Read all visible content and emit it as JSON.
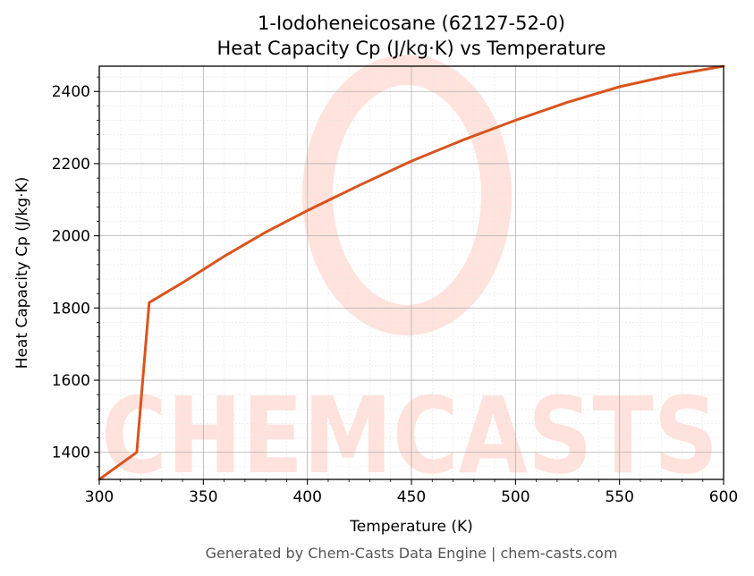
{
  "chart_data": {
    "type": "line",
    "title": "1-Iodoheneicosane (62127-52-0)",
    "subtitle": "Heat Capacity Cp (J/kg·K) vs Temperature",
    "xlabel": "Temperature (K)",
    "ylabel": "Heat Capacity Cp (J/kg·K)",
    "xlim": [
      300,
      600
    ],
    "ylim": [
      1325,
      2470
    ],
    "xticks": [
      300,
      350,
      400,
      450,
      500,
      550,
      600
    ],
    "yticks": [
      1400,
      1600,
      1800,
      2000,
      2200,
      2400
    ],
    "grid": true,
    "series": [
      {
        "color": "#d9541e",
        "x": [
          300,
          318,
          324,
          340,
          360,
          380,
          400,
          425,
          450,
          475,
          500,
          525,
          550,
          575,
          600
        ],
        "y": [
          1325,
          1400,
          1815,
          1870,
          1943,
          2010,
          2070,
          2140,
          2207,
          2266,
          2320,
          2370,
          2413,
          2445,
          2470
        ]
      }
    ]
  },
  "watermark": {
    "text": "CHEMCASTS",
    "color": "#ffd9d0"
  },
  "footer": "Generated by Chem-Casts Data Engine | chem-casts.com"
}
